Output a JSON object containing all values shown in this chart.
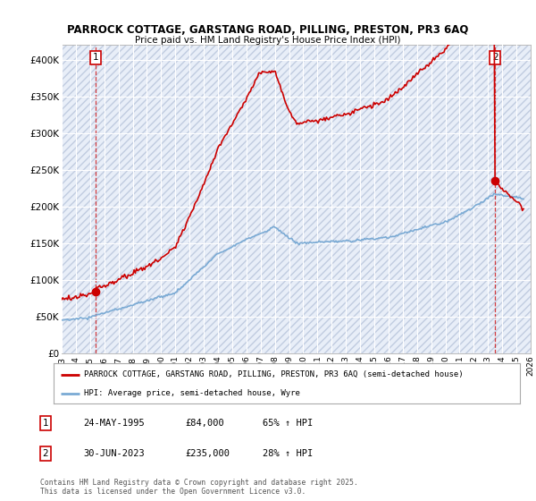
{
  "title_line1": "PARROCK COTTAGE, GARSTANG ROAD, PILLING, PRESTON, PR3 6AQ",
  "title_line2": "Price paid vs. HM Land Registry's House Price Index (HPI)",
  "ylim": [
    0,
    420000
  ],
  "yticks": [
    0,
    50000,
    100000,
    150000,
    200000,
    250000,
    300000,
    350000,
    400000
  ],
  "ytick_labels": [
    "£0",
    "£50K",
    "£100K",
    "£150K",
    "£200K",
    "£250K",
    "£300K",
    "£350K",
    "£400K"
  ],
  "plot_background": "#e8eef8",
  "hatch_color": "#c0cce0",
  "grid_color": "#ffffff",
  "red_line_color": "#cc0000",
  "blue_line_color": "#7aaad4",
  "sale1_date": 1995.38,
  "sale1_price": 84000,
  "sale2_date": 2023.49,
  "sale2_price": 235000,
  "legend_entry1": "PARROCK COTTAGE, GARSTANG ROAD, PILLING, PRESTON, PR3 6AQ (semi-detached house)",
  "legend_entry2": "HPI: Average price, semi-detached house, Wyre",
  "table_row1": [
    "1",
    "24-MAY-1995",
    "£84,000",
    "65% ↑ HPI"
  ],
  "table_row2": [
    "2",
    "30-JUN-2023",
    "£235,000",
    "28% ↑ HPI"
  ],
  "footnote": "Contains HM Land Registry data © Crown copyright and database right 2025.\nThis data is licensed under the Open Government Licence v3.0.",
  "xmin": 1993,
  "xmax": 2026
}
